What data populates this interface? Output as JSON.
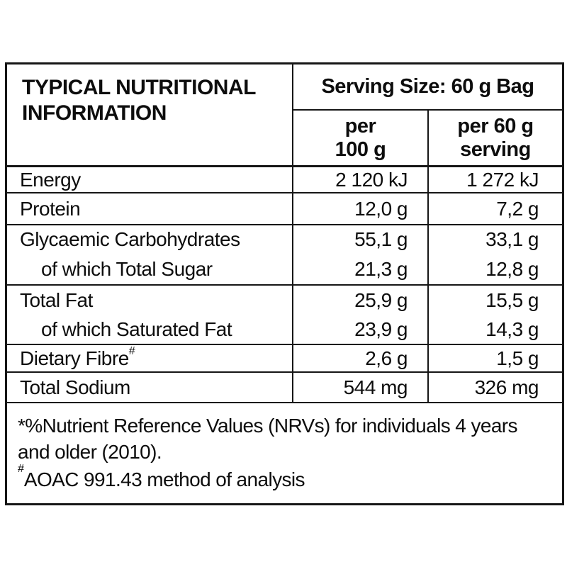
{
  "colors": {
    "text": "#0d0d0d",
    "border": "#161616",
    "background": "#ffffff"
  },
  "table": {
    "title": "TYPICAL NUTRITIONAL INFORMATION",
    "serving_size": "Serving Size: 60 g Bag",
    "columns": {
      "per100_line1": "per",
      "per100_line2": "100 g",
      "per60_line1": "per 60 g",
      "per60_line2": "serving"
    },
    "rows": [
      {
        "label": "Energy",
        "per100": "2 120 kJ",
        "per60": "1 272 kJ"
      },
      {
        "label": "Protein",
        "per100": "12,0 g",
        "per60": "7,2 g"
      },
      {
        "label": "Glycaemic Carbohydrates",
        "per100": "55,1 g",
        "per60": "33,1 g"
      },
      {
        "label": "of which Total Sugar",
        "per100": "21,3 g",
        "per60": "12,8 g"
      },
      {
        "label": "Total Fat",
        "per100": "25,9 g",
        "per60": "15,5 g"
      },
      {
        "label": "of which Saturated Fat",
        "per100": "23,9 g",
        "per60": "14,3 g"
      },
      {
        "label": "Dietary Fibre",
        "label_sup": "#",
        "per100": "2,6 g",
        "per60": "1,5 g"
      },
      {
        "label": "Total Sodium",
        "per100": "544 mg",
        "per60": "326 mg"
      }
    ],
    "footnotes": [
      {
        "text": "*%Nutrient Reference Values (NRVs) for individuals 4 years and older (2010)."
      },
      {
        "sup": "#",
        "text": "AOAC 991.43 method of analysis"
      }
    ]
  }
}
